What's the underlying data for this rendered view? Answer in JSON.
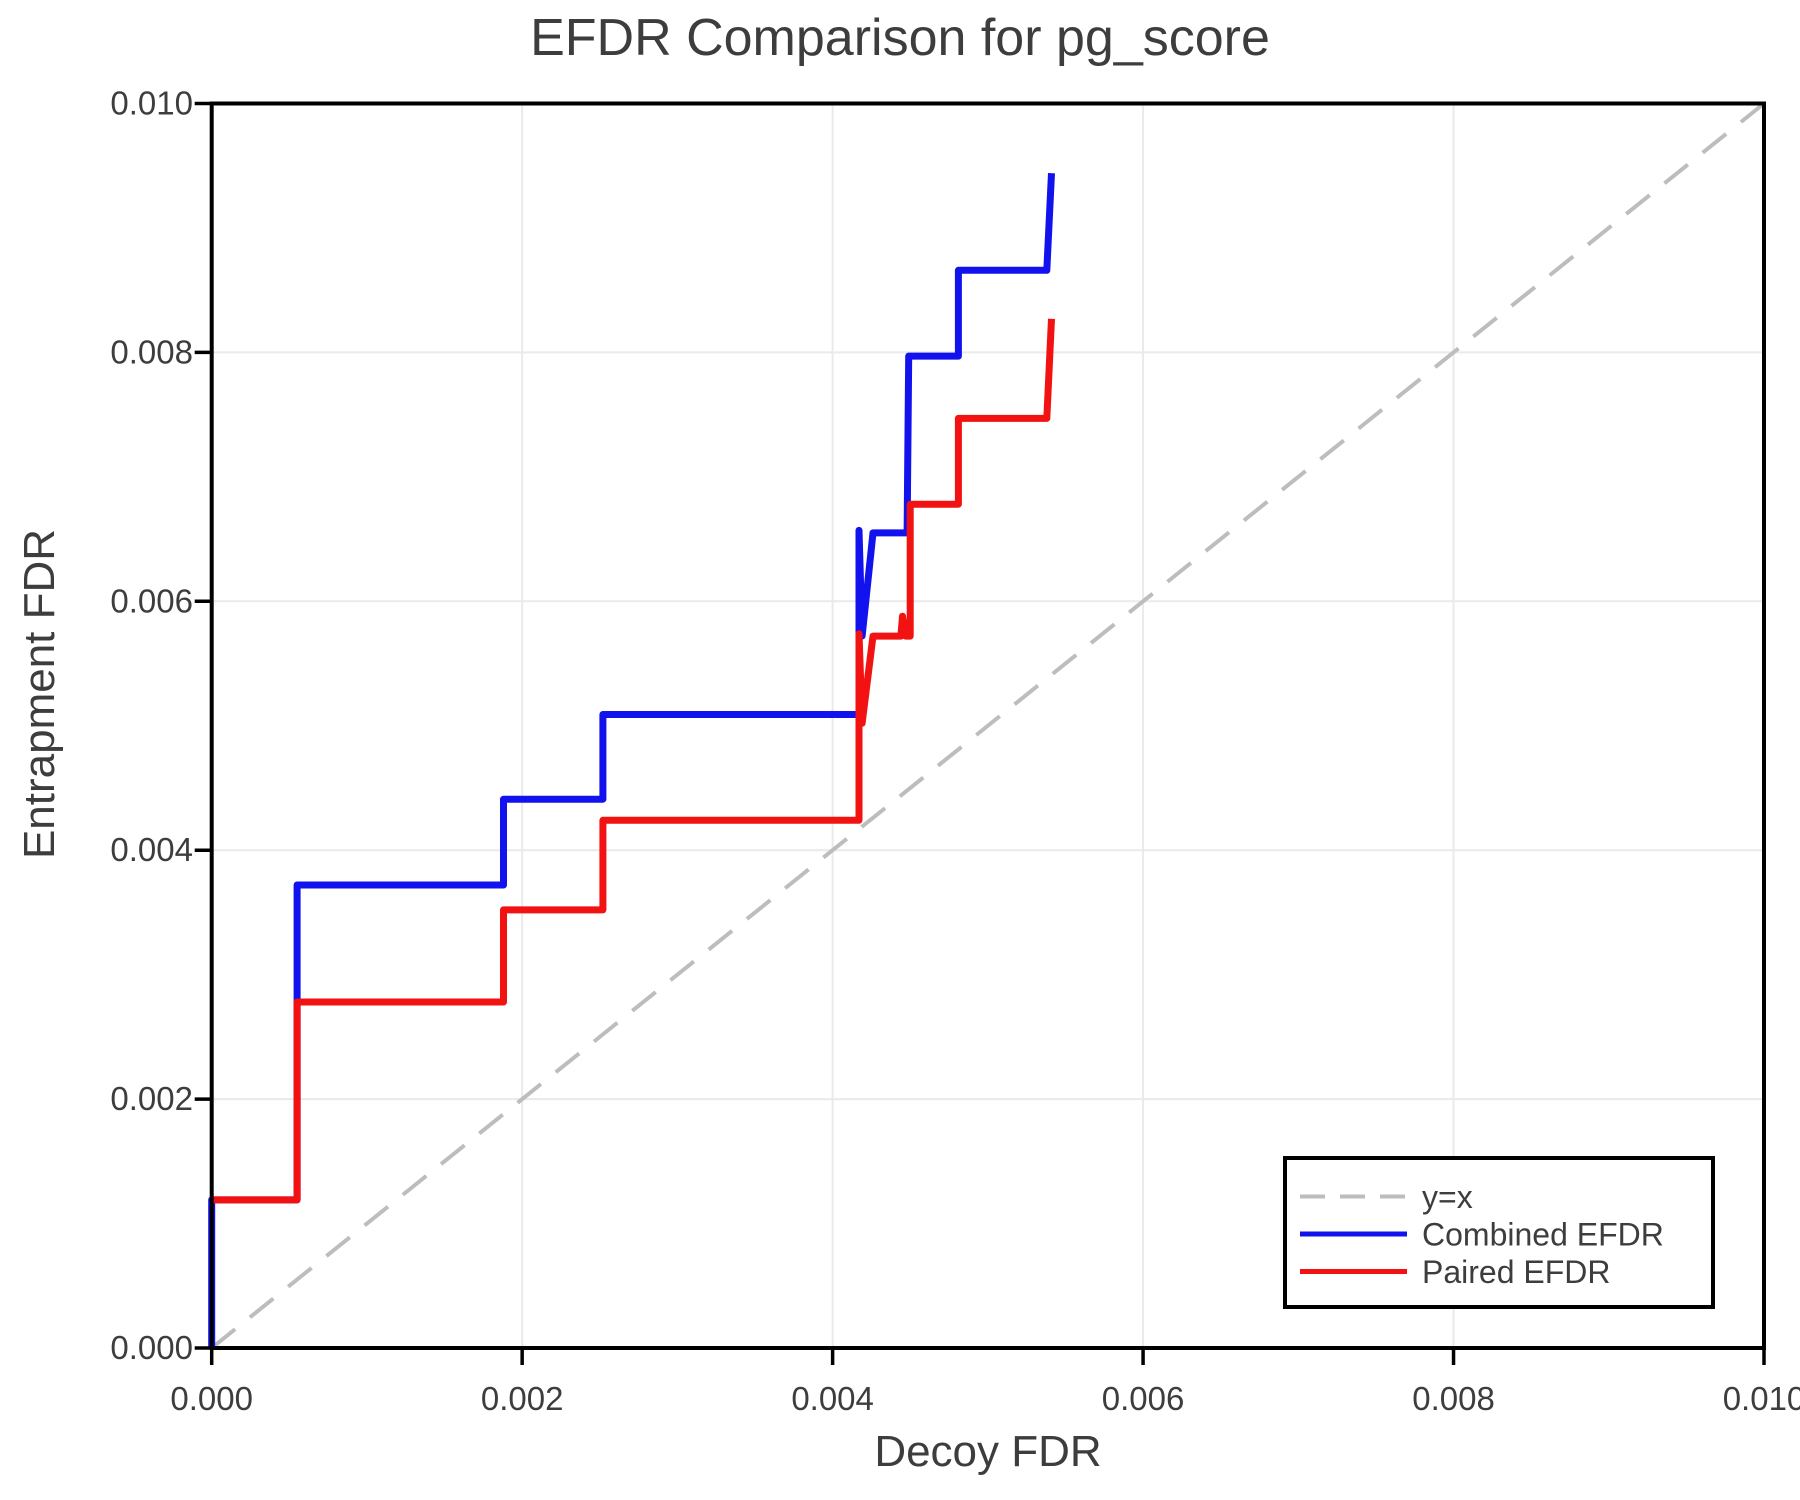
{
  "figure": {
    "kind": "static-plot-image"
  },
  "chart_data": {
    "type": "line",
    "title": "EFDR Comparison for pg_score",
    "xlabel": "Decoy FDR",
    "ylabel": "Entrapment FDR",
    "xlim": [
      0,
      0.01
    ],
    "ylim": [
      0,
      0.01
    ],
    "xticks": [
      0,
      0.002,
      0.004,
      0.006,
      0.008,
      0.01
    ],
    "yticks": [
      0,
      0.002,
      0.004,
      0.006,
      0.008,
      0.01
    ],
    "tick_decimals": 3,
    "grid": true,
    "frame": true,
    "legend_position": "bottom-right",
    "colors": {
      "identity_line": "#bdbdbd",
      "combined": "#1212ee",
      "paired": "#f31212",
      "grid": "#eaeaea",
      "frame": "#000000",
      "text": "#3d3d3d"
    },
    "series": [
      {
        "name": "y=x",
        "style": "dashed",
        "color_key": "identity_line",
        "width": 4,
        "points": [
          [
            0,
            0
          ],
          [
            0.01,
            0.01
          ]
        ]
      },
      {
        "name": "Combined EFDR",
        "style": "solid",
        "color_key": "combined",
        "width": 7,
        "points": [
          [
            0,
            0
          ],
          [
            0,
            0.00119
          ],
          [
            0.00055,
            0.00119
          ],
          [
            0.00055,
            0.00372
          ],
          [
            0.00188,
            0.00372
          ],
          [
            0.00188,
            0.00441
          ],
          [
            0.00252,
            0.00441
          ],
          [
            0.00252,
            0.00509
          ],
          [
            0.00417,
            0.00509
          ],
          [
            0.00417,
            0.00657
          ],
          [
            0.00419,
            0.00572
          ],
          [
            0.00426,
            0.00655
          ],
          [
            0.00448,
            0.00655
          ],
          [
            0.00449,
            0.00797
          ],
          [
            0.00481,
            0.00797
          ],
          [
            0.00481,
            0.00866
          ],
          [
            0.00538,
            0.00866
          ],
          [
            0.00541,
            0.00944
          ]
        ]
      },
      {
        "name": "Paired EFDR",
        "style": "solid",
        "color_key": "paired",
        "width": 7,
        "points": [
          [
            0,
            0.00119
          ],
          [
            0.00055,
            0.00119
          ],
          [
            0.00055,
            0.00278
          ],
          [
            0.00188,
            0.00278
          ],
          [
            0.00188,
            0.00352
          ],
          [
            0.00252,
            0.00352
          ],
          [
            0.00252,
            0.00424
          ],
          [
            0.00417,
            0.00424
          ],
          [
            0.00417,
            0.00574
          ],
          [
            0.00419,
            0.00502
          ],
          [
            0.00426,
            0.00572
          ],
          [
            0.00444,
            0.00572
          ],
          [
            0.00445,
            0.00588
          ],
          [
            0.00447,
            0.00572
          ],
          [
            0.0045,
            0.00572
          ],
          [
            0.0045,
            0.00678
          ],
          [
            0.00481,
            0.00678
          ],
          [
            0.00481,
            0.00747
          ],
          [
            0.00538,
            0.00747
          ],
          [
            0.00541,
            0.00827
          ]
        ]
      }
    ],
    "legend": {
      "entries": [
        "y=x",
        "Combined EFDR",
        "Paired EFDR"
      ]
    }
  }
}
